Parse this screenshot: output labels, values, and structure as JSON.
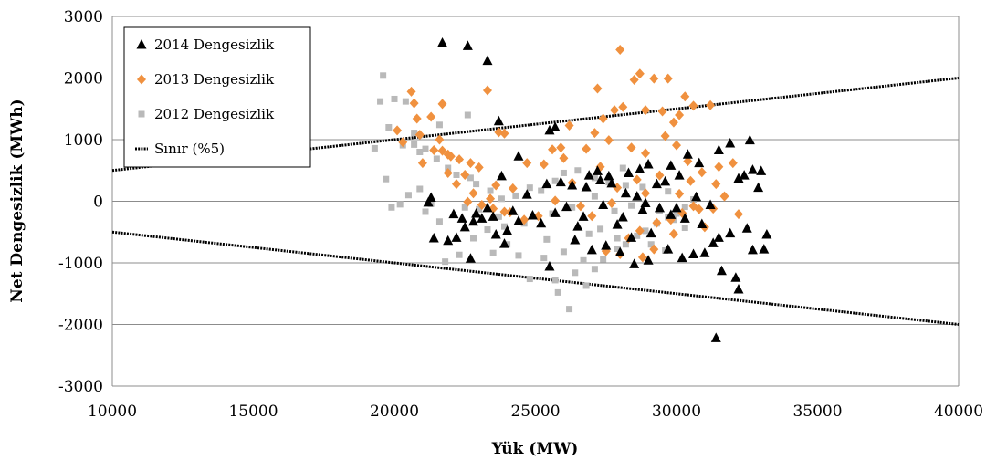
{
  "chart_data": {
    "type": "scatter",
    "xlabel": "Yük (MW)",
    "ylabel": "Net Dengesizlik (MWh)",
    "xlim": [
      10000,
      40000
    ],
    "ylim": [
      -3000,
      3000
    ],
    "x_ticks": [
      10000,
      15000,
      20000,
      25000,
      30000,
      35000,
      40000
    ],
    "y_ticks": [
      -3000,
      -2000,
      -1000,
      0,
      1000,
      2000,
      3000
    ],
    "grid": "horizontal",
    "legend_position": "top-left",
    "series": [
      {
        "name": "2014 Dengesizlik",
        "marker": "triangle",
        "color": "#000000",
        "points": [
          [
            21700,
            2570
          ],
          [
            22600,
            2520
          ],
          [
            23300,
            2280
          ],
          [
            23700,
            1300
          ],
          [
            25500,
            1150
          ],
          [
            25700,
            1200
          ],
          [
            31500,
            830
          ],
          [
            31900,
            940
          ],
          [
            32600,
            990
          ],
          [
            32200,
            370
          ],
          [
            32400,
            420
          ],
          [
            32700,
            510
          ],
          [
            33000,
            490
          ],
          [
            32900,
            220
          ],
          [
            30800,
            620
          ],
          [
            29800,
            580
          ],
          [
            29000,
            600
          ],
          [
            28700,
            520
          ],
          [
            28300,
            460
          ],
          [
            27600,
            410
          ],
          [
            27200,
            490
          ],
          [
            26800,
            230
          ],
          [
            26300,
            260
          ],
          [
            25900,
            310
          ],
          [
            25400,
            280
          ],
          [
            24700,
            110
          ],
          [
            24400,
            730
          ],
          [
            23800,
            410
          ],
          [
            23300,
            -110
          ],
          [
            22900,
            -200
          ],
          [
            22400,
            -280
          ],
          [
            22100,
            -210
          ],
          [
            21900,
            -640
          ],
          [
            21400,
            -600
          ],
          [
            21300,
            60
          ],
          [
            21200,
            -20
          ],
          [
            22200,
            -590
          ],
          [
            22700,
            -930
          ],
          [
            23600,
            -540
          ],
          [
            24000,
            -480
          ],
          [
            24400,
            -320
          ],
          [
            25500,
            -1060
          ],
          [
            26400,
            -630
          ],
          [
            27000,
            -790
          ],
          [
            27500,
            -720
          ],
          [
            28000,
            -830
          ],
          [
            28500,
            -1020
          ],
          [
            29000,
            -960
          ],
          [
            29700,
            -780
          ],
          [
            30200,
            -920
          ],
          [
            30600,
            -860
          ],
          [
            31000,
            -840
          ],
          [
            31300,
            -680
          ],
          [
            31600,
            -1130
          ],
          [
            32100,
            -1240
          ],
          [
            32200,
            -1430
          ],
          [
            31400,
            -2220
          ],
          [
            32700,
            -790
          ],
          [
            33100,
            -780
          ],
          [
            33200,
            -540
          ],
          [
            32500,
            -440
          ],
          [
            31900,
            -520
          ],
          [
            31500,
            -590
          ],
          [
            30900,
            -370
          ],
          [
            30300,
            -280
          ],
          [
            29800,
            -220
          ],
          [
            29400,
            -110
          ],
          [
            28900,
            -30
          ],
          [
            28600,
            80
          ],
          [
            28200,
            130
          ],
          [
            27700,
            290
          ],
          [
            27300,
            340
          ],
          [
            26900,
            420
          ],
          [
            30400,
            760
          ],
          [
            30100,
            420
          ],
          [
            29600,
            320
          ],
          [
            29300,
            280
          ],
          [
            28800,
            -140
          ],
          [
            28100,
            -260
          ],
          [
            27900,
            -380
          ],
          [
            26700,
            -250
          ],
          [
            26100,
            -90
          ],
          [
            25700,
            -190
          ],
          [
            24900,
            -230
          ],
          [
            24200,
            -160
          ],
          [
            23500,
            -250
          ],
          [
            23100,
            -280
          ],
          [
            22800,
            -330
          ],
          [
            22500,
            -420
          ],
          [
            30700,
            70
          ],
          [
            31200,
            -60
          ],
          [
            30000,
            -110
          ],
          [
            29100,
            -520
          ],
          [
            28400,
            -590
          ],
          [
            27400,
            -60
          ],
          [
            26500,
            -410
          ],
          [
            25200,
            -360
          ],
          [
            23900,
            -690
          ]
        ]
      },
      {
        "name": "2013 Dengesizlik",
        "marker": "diamond",
        "color": "#f0913f",
        "points": [
          [
            28000,
            2460
          ],
          [
            28700,
            2070
          ],
          [
            29200,
            1990
          ],
          [
            29700,
            1990
          ],
          [
            28500,
            1970
          ],
          [
            27200,
            1830
          ],
          [
            23300,
            1800
          ],
          [
            20600,
            1780
          ],
          [
            20700,
            1590
          ],
          [
            21700,
            1580
          ],
          [
            28100,
            1530
          ],
          [
            28900,
            1480
          ],
          [
            29500,
            1460
          ],
          [
            30300,
            1700
          ],
          [
            30600,
            1550
          ],
          [
            31200,
            1560
          ],
          [
            30100,
            1400
          ],
          [
            29900,
            1280
          ],
          [
            27800,
            1480
          ],
          [
            27400,
            1340
          ],
          [
            26200,
            1230
          ],
          [
            23900,
            1100
          ],
          [
            23700,
            1120
          ],
          [
            20800,
            1340
          ],
          [
            21300,
            1370
          ],
          [
            20100,
            1150
          ],
          [
            20300,
            960
          ],
          [
            20900,
            1080
          ],
          [
            21400,
            830
          ],
          [
            21700,
            820
          ],
          [
            21900,
            760
          ],
          [
            22300,
            680
          ],
          [
            22700,
            620
          ],
          [
            23000,
            550
          ],
          [
            22500,
            430
          ],
          [
            21900,
            460
          ],
          [
            22200,
            280
          ],
          [
            22800,
            130
          ],
          [
            23400,
            40
          ],
          [
            23100,
            -60
          ],
          [
            22600,
            -10
          ],
          [
            24200,
            210
          ],
          [
            25300,
            600
          ],
          [
            25900,
            870
          ],
          [
            26800,
            850
          ],
          [
            27100,
            1110
          ],
          [
            27600,
            990
          ],
          [
            28400,
            870
          ],
          [
            28900,
            780
          ],
          [
            29600,
            1060
          ],
          [
            30000,
            910
          ],
          [
            30400,
            650
          ],
          [
            30900,
            470
          ],
          [
            31500,
            560
          ],
          [
            32000,
            620
          ],
          [
            31700,
            80
          ],
          [
            32200,
            -210
          ],
          [
            31300,
            -120
          ],
          [
            30600,
            -80
          ],
          [
            30200,
            -190
          ],
          [
            29800,
            -300
          ],
          [
            29300,
            -350
          ],
          [
            28700,
            -480
          ],
          [
            28300,
            -600
          ],
          [
            28000,
            -860
          ],
          [
            27500,
            -810
          ],
          [
            27000,
            -240
          ],
          [
            26600,
            -80
          ],
          [
            25700,
            10
          ],
          [
            25100,
            -240
          ],
          [
            24600,
            -300
          ],
          [
            24100,
            -180
          ],
          [
            23500,
            -120
          ],
          [
            23600,
            260
          ],
          [
            24700,
            620
          ],
          [
            25600,
            840
          ],
          [
            26000,
            700
          ],
          [
            27300,
            560
          ],
          [
            27900,
            220
          ],
          [
            28600,
            350
          ],
          [
            29400,
            420
          ],
          [
            30100,
            120
          ],
          [
            30800,
            -130
          ],
          [
            31000,
            -420
          ],
          [
            29900,
            -530
          ],
          [
            29200,
            -780
          ],
          [
            28800,
            -910
          ],
          [
            21000,
            620
          ],
          [
            21600,
            1000
          ],
          [
            22000,
            730
          ],
          [
            23900,
            -170
          ],
          [
            26300,
            300
          ],
          [
            27700,
            -30
          ],
          [
            28900,
            130
          ],
          [
            30500,
            330
          ],
          [
            31400,
            280
          ]
        ]
      },
      {
        "name": "2012 Dengesizlik",
        "marker": "square",
        "color": "#b9b9b9",
        "points": [
          [
            19600,
            2040
          ],
          [
            19500,
            1620
          ],
          [
            20000,
            1660
          ],
          [
            20400,
            1620
          ],
          [
            19800,
            1200
          ],
          [
            20700,
            1110
          ],
          [
            21600,
            1240
          ],
          [
            22600,
            1400
          ],
          [
            19300,
            860
          ],
          [
            20300,
            910
          ],
          [
            20700,
            920
          ],
          [
            20900,
            800
          ],
          [
            21100,
            850
          ],
          [
            21500,
            690
          ],
          [
            21900,
            540
          ],
          [
            22200,
            430
          ],
          [
            22700,
            380
          ],
          [
            19700,
            360
          ],
          [
            20500,
            100
          ],
          [
            20200,
            -50
          ],
          [
            19900,
            -100
          ],
          [
            21100,
            -170
          ],
          [
            21600,
            -330
          ],
          [
            21800,
            -980
          ],
          [
            22300,
            -870
          ],
          [
            22800,
            -600
          ],
          [
            23300,
            -460
          ],
          [
            23900,
            -410
          ],
          [
            24400,
            -880
          ],
          [
            24800,
            -1260
          ],
          [
            25300,
            -920
          ],
          [
            25700,
            -1280
          ],
          [
            25800,
            -1480
          ],
          [
            26200,
            -1750
          ],
          [
            26400,
            -1160
          ],
          [
            26800,
            -1370
          ],
          [
            27100,
            -1100
          ],
          [
            27400,
            -940
          ],
          [
            27900,
            -770
          ],
          [
            28200,
            -700
          ],
          [
            28600,
            -560
          ],
          [
            28900,
            -480
          ],
          [
            29300,
            -360
          ],
          [
            29700,
            -260
          ],
          [
            30000,
            -200
          ],
          [
            30300,
            -90
          ],
          [
            30600,
            30
          ],
          [
            29700,
            160
          ],
          [
            28800,
            230
          ],
          [
            28200,
            260
          ],
          [
            27600,
            310
          ],
          [
            27100,
            380
          ],
          [
            26500,
            500
          ],
          [
            26000,
            460
          ],
          [
            25700,
            330
          ],
          [
            25200,
            170
          ],
          [
            24800,
            220
          ],
          [
            24300,
            90
          ],
          [
            23800,
            40
          ],
          [
            23400,
            170
          ],
          [
            22900,
            280
          ],
          [
            23000,
            -130
          ],
          [
            23700,
            -250
          ],
          [
            24600,
            -360
          ],
          [
            25400,
            -620
          ],
          [
            26000,
            -820
          ],
          [
            26700,
            -960
          ],
          [
            27300,
            -450
          ],
          [
            27800,
            -160
          ],
          [
            28400,
            -70
          ],
          [
            28900,
            -40
          ],
          [
            29400,
            -160
          ],
          [
            29900,
            -300
          ],
          [
            30300,
            -430
          ],
          [
            28100,
            540
          ],
          [
            27100,
            80
          ],
          [
            26300,
            -100
          ],
          [
            25600,
            -200
          ],
          [
            24000,
            -700
          ],
          [
            23500,
            -840
          ],
          [
            22500,
            -100
          ],
          [
            21300,
            -40
          ],
          [
            20900,
            200
          ],
          [
            26900,
            -530
          ],
          [
            27900,
            -600
          ],
          [
            29100,
            -700
          ],
          [
            29600,
            -800
          ]
        ]
      },
      {
        "name": "Sınır (%5)",
        "marker": "dotted-line",
        "color": "#000000",
        "lines": [
          {
            "x": [
              10000,
              40000
            ],
            "y": [
              500,
              2000
            ]
          },
          {
            "x": [
              10000,
              40000
            ],
            "y": [
              -500,
              -2000
            ]
          }
        ]
      }
    ]
  }
}
